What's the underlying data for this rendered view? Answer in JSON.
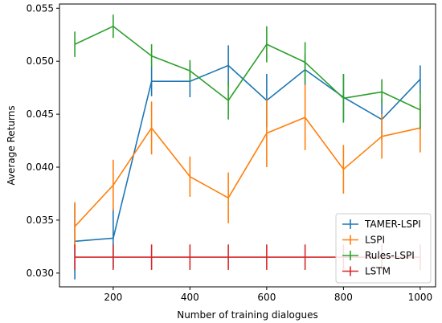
{
  "chart_data": {
    "type": "line",
    "xlabel": "Number of training dialogues",
    "ylabel": "Average Returns",
    "xlim": [
      60,
      1040
    ],
    "ylim": [
      0.0287,
      0.0554
    ],
    "x_ticks": [
      200,
      400,
      600,
      800,
      1000
    ],
    "y_ticks": [
      0.03,
      0.035,
      0.04,
      0.045,
      0.05,
      0.055
    ],
    "y_tick_labels": [
      "0.030",
      "0.035",
      "0.040",
      "0.045",
      "0.050",
      "0.055"
    ],
    "grid": false,
    "legend_position": "lower-right",
    "x": [
      100,
      200,
      300,
      400,
      500,
      600,
      700,
      800,
      900,
      1000
    ],
    "series": [
      {
        "name": "TAMER-LSPI",
        "color": "#1f77b4",
        "values": [
          0.033,
          0.0333,
          0.0481,
          0.0481,
          0.0496,
          0.0463,
          0.0492,
          0.0466,
          0.0445,
          0.0483
        ],
        "errors": [
          0.0036,
          0.0028,
          0.0014,
          0.0015,
          0.0019,
          0.0025,
          0.0015,
          0.0022,
          0.002,
          0.0013
        ]
      },
      {
        "name": "LSPI",
        "color": "#ff7f0e",
        "values": [
          0.0344,
          0.0383,
          0.0437,
          0.0391,
          0.0371,
          0.0432,
          0.0447,
          0.0398,
          0.0429,
          0.0437
        ],
        "errors": [
          0.0023,
          0.0024,
          0.0025,
          0.0019,
          0.0024,
          0.0032,
          0.0031,
          0.0023,
          0.0021,
          0.0023
        ]
      },
      {
        "name": "Rules-LSPI",
        "color": "#2ca02c",
        "values": [
          0.0516,
          0.0533,
          0.0505,
          0.0491,
          0.0463,
          0.0516,
          0.0499,
          0.0465,
          0.0471,
          0.0454
        ],
        "errors": [
          0.0012,
          0.0011,
          0.0011,
          0.001,
          0.0018,
          0.0017,
          0.0019,
          0.0023,
          0.0012,
          0.0018
        ]
      },
      {
        "name": "LSTM",
        "color": "#d62728",
        "values": [
          0.0315,
          0.0315,
          0.0315,
          0.0315,
          0.0315,
          0.0315,
          0.0315,
          0.0315,
          0.0315,
          0.0315
        ],
        "errors": [
          0.0012,
          0.0012,
          0.0012,
          0.0012,
          0.0012,
          0.0012,
          0.0012,
          0.0012,
          0.0012,
          0.0012
        ]
      }
    ]
  }
}
